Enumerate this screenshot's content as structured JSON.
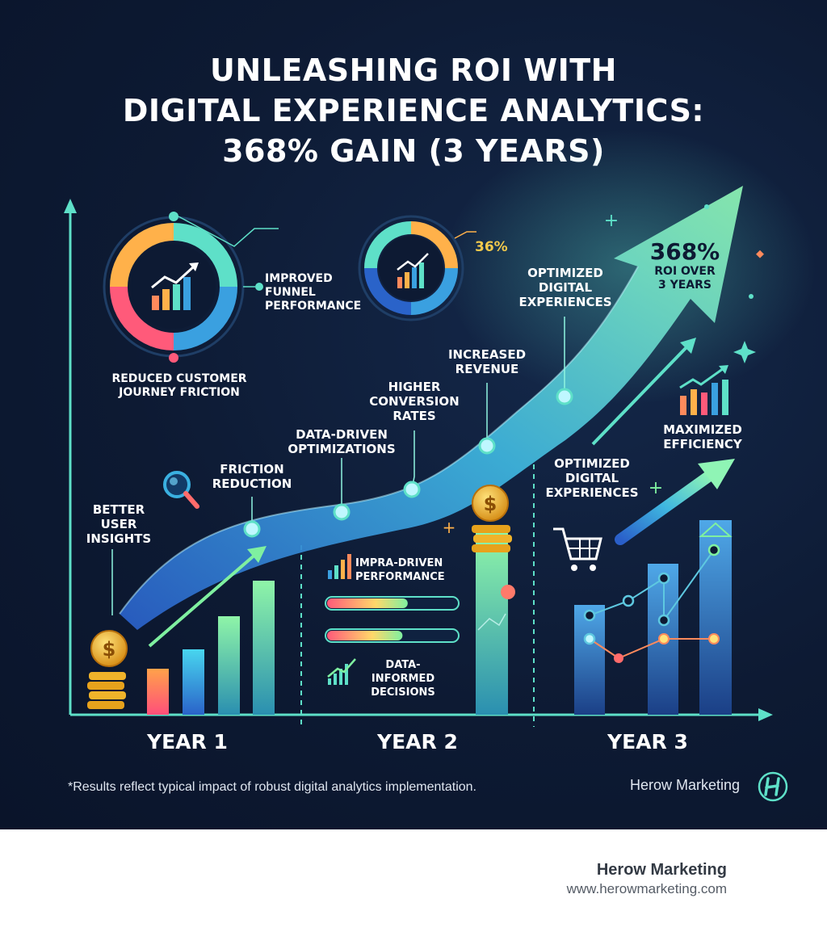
{
  "title": {
    "line1": "UNLEASHING ROI WITH",
    "line2": "DIGITAL EXPERIENCE ANALYTICS:",
    "line3": "368% GAIN (3 YEARS)"
  },
  "roi": {
    "value": "368%",
    "caption_line1": "ROI OVER",
    "caption_line2": "3 YEARS"
  },
  "donut_small_percent": "36%",
  "labels": {
    "improved_funnel": [
      "IMPROVED",
      "FUNNEL",
      "PERFORMANCE"
    ],
    "reduced_friction": [
      "REDUCED CUSTOMER",
      "JOURNEY FRICTION"
    ],
    "optimized_top": [
      "OPTIMIZED",
      "DIGITAL",
      "EXPERIENCES"
    ],
    "increased_revenue": [
      "INCREASED",
      "REVENUE"
    ],
    "higher_conversion": [
      "HIGHER",
      "CONVERSION",
      "RATES"
    ],
    "data_driven": [
      "DATA-DRIVEN",
      "OPTIMIZATIONS"
    ],
    "friction_reduction": [
      "FRICTION",
      "REDUCTION"
    ],
    "better_insights": [
      "BETTER",
      "USER",
      "INSIGHTS"
    ],
    "impra_driven": [
      "IMPRA-DRIVEN",
      "PERFORMANCE"
    ],
    "data_informed": [
      "DATA-INFORMED",
      "DECISIONS"
    ],
    "optimized_year3": [
      "OPTIMIZED",
      "DIGITAL",
      "EXPERIENCES"
    ],
    "maximized_efficiency": [
      "MAXIMIZED",
      "EFFICIENCY"
    ]
  },
  "years": [
    "YEAR 1",
    "YEAR 2",
    "YEAR 3"
  ],
  "footnote": "*Results reflect typical impact of robust digital analytics implementation.",
  "brand": "Herow Marketing",
  "footer": {
    "name": "Herow Marketing",
    "url": "www.herowmarketing.com"
  },
  "colors": {
    "background": "#0d1a33",
    "teal": "#5ee0c8",
    "green": "#7ff0a0",
    "blue": "#3a7bd5",
    "orange": "#ff8a5c",
    "gold": "#f2b632"
  },
  "icons": [
    "dollar-coin-icon",
    "magnifier-icon",
    "shopping-cart-icon",
    "bar-chart-icon",
    "growth-arrow-icon"
  ]
}
